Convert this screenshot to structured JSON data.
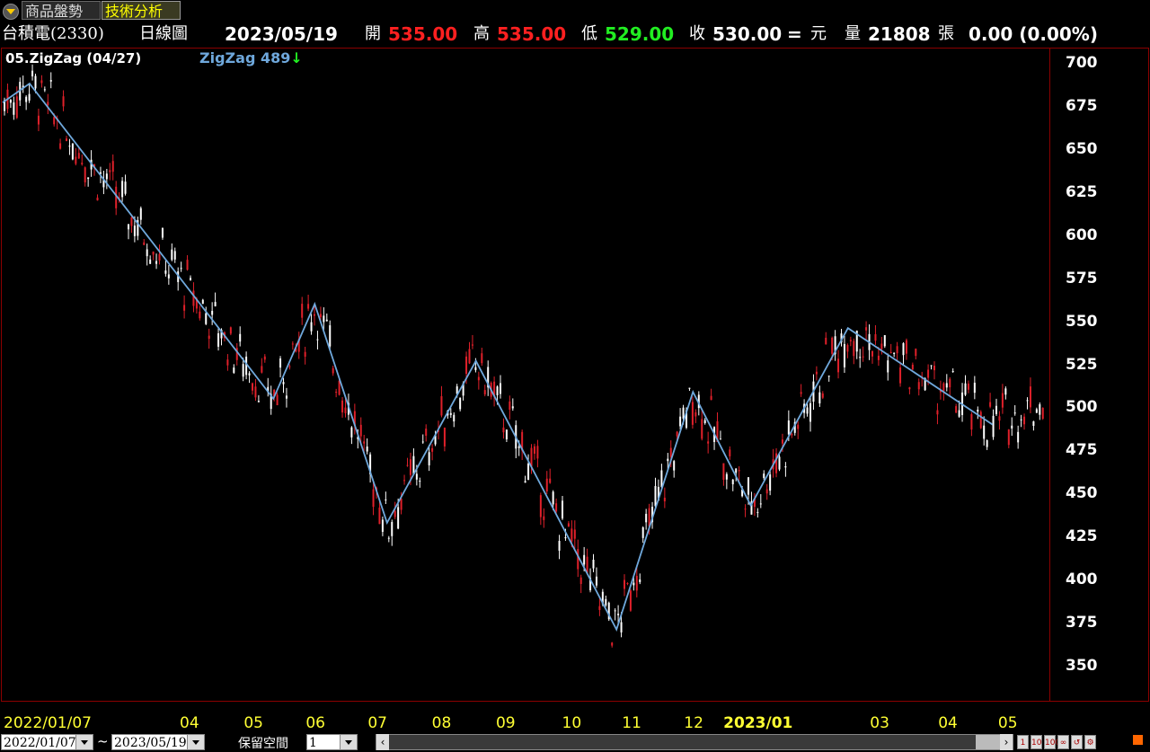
{
  "tabs": [
    {
      "label": "商品盤勢",
      "active": false
    },
    {
      "label": "技術分析",
      "active": true
    }
  ],
  "header": {
    "stock": "台積電(2330)",
    "period": "日線圖",
    "date": "2023/05/19",
    "open_label": "開",
    "open": "535.00",
    "high_label": "高",
    "high": "535.00",
    "low_label": "低",
    "low": "529.00",
    "close_label": "收",
    "close": "530.00",
    "change_sign": "=",
    "currency": "元",
    "volume_label": "量",
    "volume": "21808",
    "volume_unit": "張",
    "change": "0.00 (0.00%)"
  },
  "indicator": {
    "name": "05.ZigZag  (04/27)",
    "label": "ZigZag 489",
    "arrow": "↓"
  },
  "colors": {
    "up": "#e0202a",
    "down": "#ffffff",
    "zigzag": "#6fa8dc",
    "frame": "#8b0000"
  },
  "footer": {
    "from_date": "2022/01/07",
    "separator": "~",
    "to_date": "2023/05/19",
    "reserve_label": "保留空間",
    "reserve_value": "1"
  },
  "chart_data": {
    "type": "line",
    "ylim": [
      330,
      705
    ],
    "y_ticks": [
      350,
      375,
      400,
      425,
      450,
      475,
      500,
      525,
      550,
      575,
      600,
      625,
      650,
      675,
      700
    ],
    "x_tick_labels": [
      "2022/01/07",
      "04",
      "05",
      "06",
      "07",
      "08",
      "09",
      "10",
      "11",
      "12",
      "2023/01",
      "03",
      "04",
      "05"
    ],
    "x_tick_dates": [
      "2022-01-07",
      "2022-04-01",
      "2022-05-02",
      "2022-06-01",
      "2022-07-01",
      "2022-08-01",
      "2022-09-01",
      "2022-10-03",
      "2022-11-01",
      "2022-12-01",
      "2023-01-03",
      "2023-03-01",
      "2023-04-03",
      "2023-05-02"
    ],
    "date_range": [
      "2022-01-01",
      "2023-05-19"
    ],
    "zigzag": [
      {
        "date": "2022-01-01",
        "value": 677
      },
      {
        "date": "2022-01-14",
        "value": 688
      },
      {
        "date": "2022-05-12",
        "value": 505
      },
      {
        "date": "2022-06-01",
        "value": 560
      },
      {
        "date": "2022-07-06",
        "value": 433
      },
      {
        "date": "2022-08-18",
        "value": 527
      },
      {
        "date": "2022-10-25",
        "value": 371
      },
      {
        "date": "2022-12-01",
        "value": 509
      },
      {
        "date": "2022-12-29",
        "value": 443
      },
      {
        "date": "2023-02-14",
        "value": 546
      },
      {
        "date": "2023-04-25",
        "value": 490
      }
    ]
  }
}
